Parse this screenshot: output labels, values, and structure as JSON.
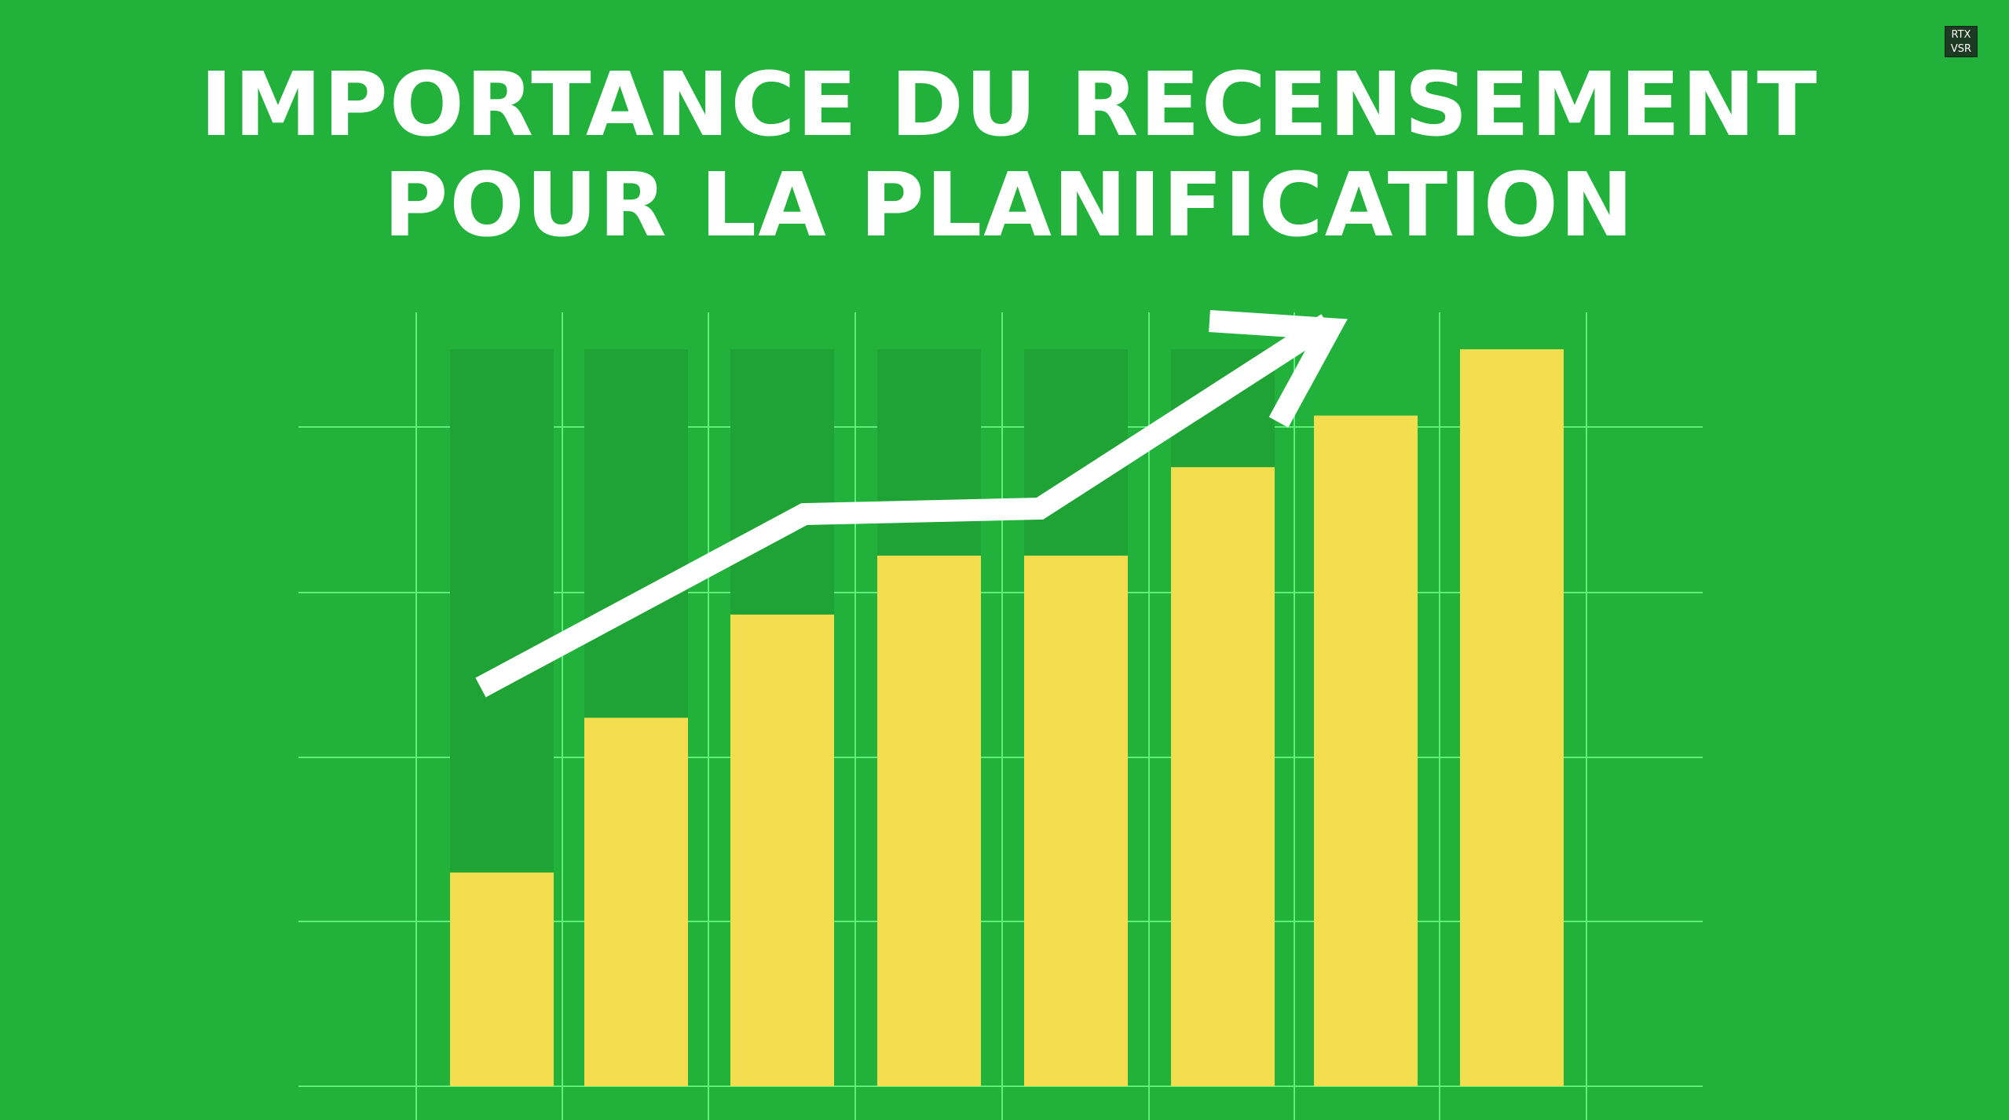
{
  "title": {
    "line1": "IMPORTANCE DU RECENSEMENT",
    "line2": "POUR LA PLANIFICATION"
  },
  "badge": {
    "line1": "RTX",
    "line2": "VSR"
  },
  "colors": {
    "background": "#22b23b",
    "bar": "#f2de4f",
    "bar_track": "#20a335",
    "grid": "#5cf07a",
    "arrow": "#ffffff",
    "title": "#ffffff"
  },
  "chart_data": {
    "type": "bar",
    "title": "IMPORTANCE DU RECENSEMENT POUR LA PLANIFICATION",
    "categories": [
      "",
      "",
      "",
      "",
      "",
      "",
      "",
      ""
    ],
    "values": [
      29,
      50,
      64,
      72,
      72,
      84,
      91,
      100
    ],
    "track_values": [
      100,
      100,
      100,
      100,
      100,
      100,
      91,
      100
    ],
    "ylim": [
      0,
      100
    ],
    "xlabel": "",
    "ylabel": "",
    "grid": true,
    "legend": "none",
    "annotations": [
      {
        "type": "trend-arrow",
        "direction": "up"
      }
    ]
  }
}
